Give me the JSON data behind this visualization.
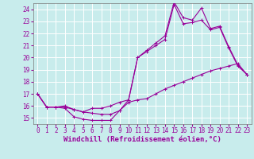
{
  "xlabel": "Windchill (Refroidissement éolien,°C)",
  "background_color": "#c8ecec",
  "line_color": "#990099",
  "grid_color": "#ffffff",
  "xlim": [
    -0.5,
    23.5
  ],
  "ylim": [
    14.5,
    24.5
  ],
  "yticks": [
    15,
    16,
    17,
    18,
    19,
    20,
    21,
    22,
    23,
    24
  ],
  "xticks": [
    0,
    1,
    2,
    3,
    4,
    5,
    6,
    7,
    8,
    9,
    10,
    11,
    12,
    13,
    14,
    15,
    16,
    17,
    18,
    19,
    20,
    21,
    22,
    23
  ],
  "curve1_x": [
    0,
    1,
    2,
    3,
    4,
    5,
    6,
    7,
    8,
    9,
    10,
    11,
    12,
    13,
    14,
    15,
    16,
    17,
    18,
    19,
    20,
    21,
    22,
    23
  ],
  "curve1_y": [
    17.0,
    15.9,
    15.9,
    15.8,
    15.1,
    14.9,
    14.8,
    14.8,
    14.8,
    15.6,
    16.3,
    16.5,
    16.6,
    17.0,
    17.4,
    17.7,
    18.0,
    18.3,
    18.6,
    18.9,
    19.1,
    19.3,
    19.5,
    18.6
  ],
  "curve2_x": [
    0,
    1,
    2,
    3,
    4,
    5,
    6,
    7,
    8,
    9,
    10,
    11,
    12,
    13,
    14,
    15,
    16,
    17,
    18,
    19,
    20,
    21,
    22,
    23
  ],
  "curve2_y": [
    17.0,
    15.9,
    15.9,
    15.9,
    15.7,
    15.5,
    15.4,
    15.3,
    15.3,
    15.6,
    16.5,
    20.0,
    20.5,
    21.0,
    21.5,
    24.4,
    22.8,
    22.9,
    23.1,
    22.3,
    22.5,
    20.8,
    19.3,
    18.6
  ],
  "curve3_x": [
    0,
    1,
    2,
    3,
    4,
    5,
    6,
    7,
    8,
    9,
    10,
    11,
    12,
    13,
    14,
    15,
    16,
    17,
    18,
    19,
    20,
    21,
    22,
    23
  ],
  "curve3_y": [
    17.0,
    15.9,
    15.9,
    16.0,
    15.7,
    15.5,
    15.8,
    15.8,
    16.0,
    16.3,
    16.5,
    20.0,
    20.6,
    21.2,
    21.8,
    24.6,
    23.3,
    23.1,
    24.1,
    22.4,
    22.6,
    20.9,
    19.4,
    18.6
  ],
  "markersize": 3,
  "linewidth": 0.8,
  "xlabel_fontsize": 6.5,
  "tick_fontsize": 5.5
}
